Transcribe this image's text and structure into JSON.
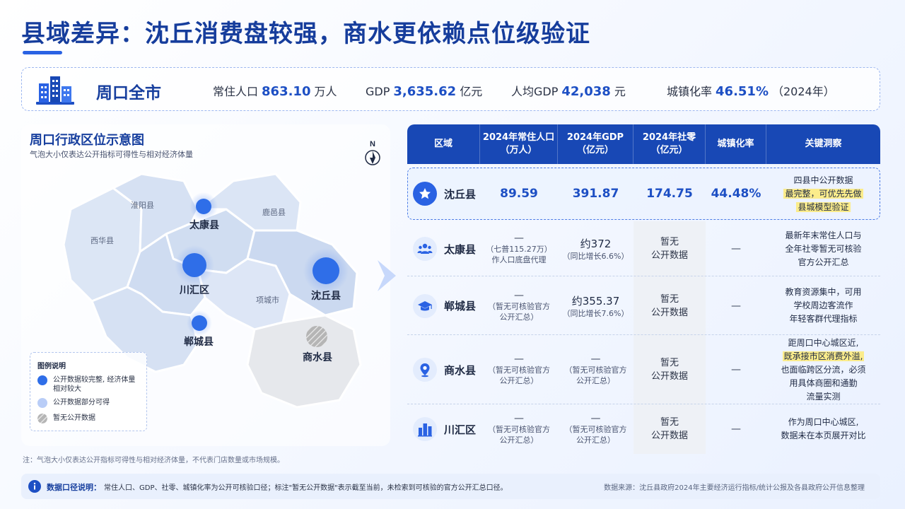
{
  "title": "县域差异：沈丘消费盘较强，商水更依赖点位级验证",
  "summary": {
    "city": "周口全市",
    "metrics": [
      {
        "label": "常住人口",
        "value": "863.10",
        "unit": "万人"
      },
      {
        "label": "GDP",
        "value": "3,635.62",
        "unit": "亿元"
      },
      {
        "label": "人均GDP",
        "value": "42,038",
        "unit": "元"
      },
      {
        "label": "城镇化率",
        "value": "46.51%",
        "unit": "（2024年）"
      }
    ]
  },
  "map": {
    "title": "周口行政区位示意图",
    "subtitle": "气泡大小仅表达公开指标可得性与相对经济体量",
    "compass": "N",
    "labels": {
      "huaiyang": "淮阳县",
      "xihua": "西华县",
      "luyi": "鹿邑县",
      "xiangcheng": "项城市",
      "taikang": "太康县",
      "chuanhui": "川汇区",
      "shenqiu": "沈丘县",
      "dancheng": "郸城县",
      "shangshui": "商水县"
    },
    "legend": {
      "title": "图例说明",
      "items": [
        {
          "text": "公开数据较完整, 经济体量相对较大",
          "color": "#2f6ee8"
        },
        {
          "text": "公开数据部分可得",
          "color": "#b9cdf7"
        },
        {
          "text": "暂无公开数据",
          "color": "#9a9a9a"
        }
      ]
    },
    "note": "注：气泡大小仅表达公开指标可得性与相对经济体量，不代表门店数量或市场规模。"
  },
  "table": {
    "headers": [
      [
        "区域"
      ],
      [
        "2024年常住人口",
        "（万人）"
      ],
      [
        "2024年GDP",
        "（亿元）"
      ],
      [
        "2024年社零",
        "（亿元）"
      ],
      [
        "城镇化率"
      ],
      [
        "关键洞察"
      ]
    ],
    "rows": [
      {
        "region": "沈丘县",
        "icon": "star-icon",
        "pop": {
          "main": "89.59"
        },
        "gdp": {
          "main": "391.87"
        },
        "retail": {
          "main": "174.75"
        },
        "urban": "44.48%",
        "insight": [
          {
            "t": "四县中公开数据",
            "h": false
          },
          {
            "t": "最完整，可优先先做",
            "h": true
          },
          {
            "t": "县城模型验证",
            "h": true
          }
        ]
      },
      {
        "region": "太康县",
        "icon": "people-icon",
        "pop": {
          "main": "—",
          "sub": [
            "（七普115.27万）",
            "作人口底盘代理"
          ]
        },
        "gdp": {
          "main": "约372",
          "sub": [
            "（同比增长6.6%）"
          ]
        },
        "retail": {
          "lines": [
            "暂无",
            "公开数据"
          ]
        },
        "urban": "—",
        "insight": [
          {
            "t": "最新年末常住人口与",
            "h": false
          },
          {
            "t": "全年社零暂无可核验",
            "h": false
          },
          {
            "t": "官方公开汇总",
            "h": false
          }
        ]
      },
      {
        "region": "郸城县",
        "icon": "graduation-cap-icon",
        "pop": {
          "main": "—",
          "sub": [
            "（暂无可核验官方",
            "公开汇总）"
          ]
        },
        "gdp": {
          "main": "约355.37",
          "sub": [
            "（同比增长7.6%）"
          ]
        },
        "retail": {
          "lines": [
            "暂无",
            "公开数据"
          ]
        },
        "urban": "—",
        "insight": [
          {
            "t": "教育资源集中，可用",
            "h": false
          },
          {
            "t": "学校周边客流作",
            "h": false
          },
          {
            "t": "年轻客群代理指标",
            "h": false
          }
        ]
      },
      {
        "region": "商水县",
        "icon": "location-pin-icon",
        "pop": {
          "main": "—",
          "sub": [
            "（暂无可核验官方",
            "公开汇总）"
          ]
        },
        "gdp": {
          "main": "—",
          "sub": [
            "（暂无可核验官方",
            "公开汇总）"
          ]
        },
        "retail": {
          "lines": [
            "暂无",
            "公开数据"
          ]
        },
        "urban": "—",
        "insight": [
          {
            "t": "距周口中心城区近,",
            "h": false
          },
          {
            "t": "既承接市区消费外溢,",
            "h": true
          },
          {
            "t": "也面临跨区分流，必须",
            "h": false
          },
          {
            "t": "用具体商圈和通勤",
            "h": false
          },
          {
            "t": "流量实测",
            "h": false
          }
        ]
      },
      {
        "region": "川汇区",
        "icon": "buildings-icon",
        "pop": {
          "main": "—",
          "sub": [
            "（暂无可核验官方",
            "公开汇总）"
          ]
        },
        "gdp": {
          "main": "—",
          "sub": [
            "（暂无可核验官方",
            "公开汇总）"
          ]
        },
        "retail": {
          "lines": [
            "暂无",
            "公开数据"
          ]
        },
        "urban": "—",
        "insight": [
          {
            "t": "作为周口中心城区,",
            "h": false
          },
          {
            "t": "数据未在本页展开对比",
            "h": false
          }
        ]
      }
    ]
  },
  "footer": {
    "label": "数据口径说明：",
    "text": "常住人口、GDP、社零、城镇化率为公开可核验口径；标注\"暂无公开数据\"表示截至当前，未检索到可核验的官方公开汇总口径。",
    "source": "数据来源：沈丘县政府2024年主要经济运行指标/统计公报及各县政府公开信息整理"
  },
  "colors": {
    "primary": "#1848b5",
    "accent": "#2a62e3",
    "highlight": "#fbec8b"
  }
}
